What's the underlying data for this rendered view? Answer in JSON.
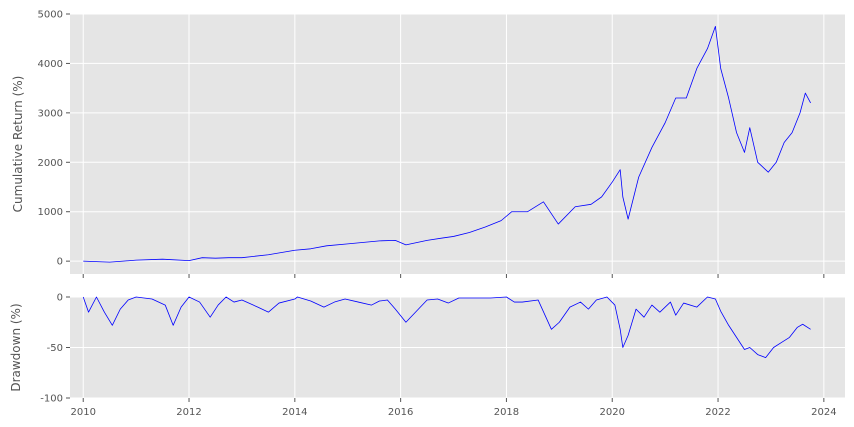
{
  "chart_data": [
    {
      "type": "line",
      "title": "",
      "xlabel": "",
      "ylabel": "Cumulative Return (%)",
      "xlim": [
        2009.75,
        2024.4
      ],
      "ylim": [
        -260,
        5000
      ],
      "yticks": [
        0,
        1000,
        2000,
        3000,
        4000,
        5000
      ],
      "grid": true,
      "series": [
        {
          "color": "#0000ff",
          "x": [
            2010.0,
            2010.5,
            2011.0,
            2011.5,
            2012.0,
            2012.25,
            2012.5,
            2012.75,
            2013.0,
            2013.5,
            2014.0,
            2014.3,
            2014.6,
            2015.0,
            2015.3,
            2015.6,
            2015.9,
            2016.1,
            2016.5,
            2016.8,
            2017.0,
            2017.3,
            2017.6,
            2017.9,
            2018.1,
            2018.4,
            2018.7,
            2018.98,
            2019.3,
            2019.6,
            2019.8,
            2020.0,
            2020.15,
            2020.2,
            2020.3,
            2020.5,
            2020.75,
            2021.0,
            2021.2,
            2021.4,
            2021.6,
            2021.8,
            2021.95,
            2022.05,
            2022.2,
            2022.35,
            2022.5,
            2022.6,
            2022.75,
            2022.95,
            2023.1,
            2023.25,
            2023.4,
            2023.55,
            2023.65,
            2023.75
          ],
          "values": [
            0,
            -20,
            20,
            40,
            10,
            70,
            60,
            70,
            70,
            130,
            220,
            250,
            310,
            350,
            380,
            410,
            420,
            330,
            420,
            470,
            500,
            580,
            690,
            820,
            1000,
            1000,
            1200,
            750,
            1100,
            1150,
            1300,
            1600,
            1850,
            1300,
            850,
            1700,
            2300,
            2800,
            3300,
            3300,
            3900,
            4300,
            4750,
            3900,
            3300,
            2600,
            2200,
            2700,
            2000,
            1800,
            2000,
            2400,
            2600,
            3000,
            3400,
            3200
          ]
        }
      ]
    },
    {
      "type": "line",
      "title": "",
      "xlabel": "",
      "ylabel": "Drawdown (%)",
      "xlim": [
        2009.75,
        2024.4
      ],
      "ylim": [
        -100,
        0
      ],
      "xticks": [
        2010,
        2012,
        2014,
        2016,
        2018,
        2020,
        2022,
        2024
      ],
      "yticks": [
        0,
        -50,
        -100
      ],
      "grid": true,
      "series": [
        {
          "color": "#0000ff",
          "x": [
            2010.0,
            2010.1,
            2010.25,
            2010.4,
            2010.55,
            2010.7,
            2010.85,
            2011.0,
            2011.3,
            2011.55,
            2011.7,
            2011.85,
            2012.0,
            2012.2,
            2012.4,
            2012.55,
            2012.7,
            2012.85,
            2013.0,
            2013.3,
            2013.5,
            2013.7,
            2014.0,
            2014.05,
            2014.3,
            2014.55,
            2014.75,
            2014.95,
            2015.2,
            2015.45,
            2015.6,
            2015.75,
            2015.9,
            2016.1,
            2016.3,
            2016.5,
            2016.7,
            2016.9,
            2017.1,
            2017.4,
            2017.7,
            2018.0,
            2018.15,
            2018.3,
            2018.6,
            2018.85,
            2019.0,
            2019.2,
            2019.4,
            2019.55,
            2019.7,
            2019.9,
            2020.05,
            2020.15,
            2020.2,
            2020.3,
            2020.45,
            2020.6,
            2020.75,
            2020.9,
            2021.1,
            2021.2,
            2021.35,
            2021.6,
            2021.8,
            2021.95,
            2022.05,
            2022.2,
            2022.35,
            2022.5,
            2022.6,
            2022.75,
            2022.9,
            2023.05,
            2023.2,
            2023.35,
            2023.5,
            2023.6,
            2023.75
          ],
          "values": [
            0,
            -15,
            0,
            -15,
            -28,
            -12,
            -3,
            0,
            -2,
            -8,
            -28,
            -10,
            0,
            -5,
            -20,
            -8,
            0,
            -5,
            -3,
            -10,
            -15,
            -6,
            -2,
            0,
            -4,
            -10,
            -5,
            -2,
            -5,
            -8,
            -4,
            -3,
            -12,
            -25,
            -14,
            -3,
            -2,
            -6,
            -1,
            -1,
            -1,
            0,
            -5,
            -5,
            -3,
            -32,
            -25,
            -10,
            -5,
            -12,
            -3,
            0,
            -8,
            -32,
            -50,
            -38,
            -12,
            -20,
            -8,
            -15,
            -5,
            -18,
            -6,
            -10,
            0,
            -2,
            -14,
            -28,
            -40,
            -52,
            -50,
            -57,
            -60,
            -50,
            -45,
            -40,
            -30,
            -27,
            -32
          ]
        }
      ]
    }
  ]
}
